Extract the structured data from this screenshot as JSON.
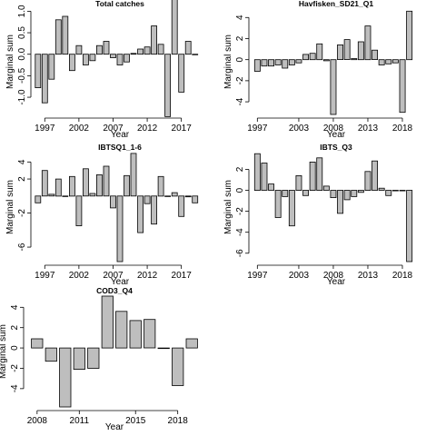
{
  "chart_data": [
    {
      "type": "bar",
      "title": "Total catches",
      "xlabel": "Year",
      "ylabel": "Marginal sum",
      "ylim": [
        -1.4,
        1.05
      ],
      "yticks": [
        -1.0,
        -0.5,
        0.0,
        0.5,
        1.0
      ],
      "ytick_labels": [
        "-1.0",
        "-0.5",
        "0.0",
        "0.5",
        "1.0"
      ],
      "xlim": [
        1995.5,
        2020.5
      ],
      "xticks": [
        1997,
        2002,
        2007,
        2012,
        2017
      ],
      "xtick_labels": [
        "1997",
        "2002",
        "2007",
        "2012",
        "2017"
      ],
      "bar_width": 0.8,
      "x": [
        1996,
        1997,
        1998,
        1999,
        2000,
        2001,
        2002,
        2003,
        2004,
        2005,
        2006,
        2007,
        2008,
        2009,
        2010,
        2011,
        2012,
        2013,
        2014,
        2015,
        2016,
        2017,
        2018,
        2019
      ],
      "values": [
        -0.78,
        -1.13,
        -0.58,
        0.8,
        0.88,
        -0.38,
        0.2,
        -0.25,
        -0.15,
        0.2,
        0.3,
        -0.08,
        -0.25,
        -0.18,
        0.02,
        0.12,
        0.17,
        0.66,
        0.23,
        -1.45,
        1.28,
        -0.88,
        0.3,
        0.0
      ]
    },
    {
      "type": "bar",
      "title": "Havfisken_SD21_Q1",
      "xlabel": "Year",
      "ylabel": "Marginal sum",
      "ylim": [
        -5.2,
        4.8
      ],
      "yticks": [
        -4,
        -2,
        0,
        2,
        4
      ],
      "ytick_labels": [
        "-4",
        "-2",
        "0",
        "2",
        "4"
      ],
      "xlim": [
        1996.3,
        2020.5
      ],
      "xticks": [
        1997,
        2003,
        2008,
        2013,
        2018
      ],
      "xtick_labels": [
        "1997",
        "2003",
        "2008",
        "2013",
        "2018"
      ],
      "bar_width": 0.8,
      "x": [
        1997,
        1998,
        1999,
        2000,
        2001,
        2002,
        2003,
        2004,
        2005,
        2006,
        2007,
        2008,
        2009,
        2010,
        2011,
        2012,
        2013,
        2014,
        2015,
        2016,
        2017,
        2018,
        2019
      ],
      "values": [
        -1.1,
        -0.6,
        -0.6,
        -0.5,
        -0.8,
        -0.5,
        -0.3,
        0.5,
        0.6,
        1.5,
        -0.1,
        -5.2,
        1.4,
        1.9,
        0.1,
        1.7,
        3.2,
        0.9,
        -0.5,
        -0.4,
        -0.3,
        -5.0,
        4.6
      ]
    },
    {
      "type": "bar",
      "title": "IBTSQ1_1-6",
      "xlabel": "Year",
      "ylabel": "Marginal sum",
      "ylim": [
        -7.7,
        5.1
      ],
      "yticks": [
        -6,
        -2,
        2,
        4
      ],
      "ytick_labels": [
        "-6",
        "-2",
        "2",
        "4"
      ],
      "xlim": [
        1995.5,
        2020.5
      ],
      "xticks": [
        1997,
        2002,
        2007,
        2012,
        2017
      ],
      "xtick_labels": [
        "1997",
        "2002",
        "2007",
        "2012",
        "2017"
      ],
      "bar_width": 0.8,
      "x": [
        1996,
        1997,
        1998,
        1999,
        2000,
        2001,
        2002,
        2003,
        2004,
        2005,
        2006,
        2007,
        2008,
        2009,
        2010,
        2011,
        2012,
        2013,
        2014,
        2015,
        2016,
        2017,
        2018,
        2019
      ],
      "values": [
        -0.8,
        3.0,
        0.2,
        2.0,
        0.0,
        2.3,
        -3.5,
        3.2,
        0.3,
        2.5,
        3.5,
        -1.4,
        -7.7,
        2.4,
        5.0,
        -4.3,
        -0.9,
        -3.3,
        2.3,
        0.0,
        0.4,
        -2.4,
        -0.1,
        -0.8
      ]
    },
    {
      "type": "bar",
      "title": "IBTS_Q3",
      "xlabel": "Year",
      "ylabel": "Marginal sum",
      "ylim": [
        -6.8,
        3.6
      ],
      "yticks": [
        -6,
        -4,
        -2,
        0,
        2
      ],
      "ytick_labels": [
        "-6",
        "-4",
        "-2",
        "0",
        "2"
      ],
      "xlim": [
        1996.3,
        2020.5
      ],
      "xticks": [
        1997,
        2003,
        2008,
        2013,
        2018
      ],
      "xtick_labels": [
        "1997",
        "2003",
        "2008",
        "2013",
        "2018"
      ],
      "bar_width": 0.8,
      "x": [
        1997,
        1998,
        1999,
        2000,
        2001,
        2002,
        2003,
        2004,
        2005,
        2006,
        2007,
        2008,
        2009,
        2010,
        2011,
        2012,
        2013,
        2014,
        2015,
        2016,
        2017,
        2018,
        2019
      ],
      "values": [
        3.5,
        2.6,
        0.6,
        -2.6,
        -0.6,
        -3.4,
        1.4,
        -0.5,
        2.7,
        3.1,
        0.4,
        -0.7,
        -2.2,
        -0.9,
        -0.6,
        -0.2,
        1.8,
        2.8,
        0.2,
        -0.5,
        0.0,
        0.0,
        -6.8
      ]
    },
    {
      "type": "bar",
      "title": "COD3_Q4",
      "xlabel": "Year",
      "ylabel": "Marginal sum",
      "ylim": [
        -5.8,
        5.1
      ],
      "yticks": [
        -4,
        -2,
        0,
        2,
        4
      ],
      "ytick_labels": [
        "-4",
        "-2",
        "0",
        "2",
        "4"
      ],
      "xlim": [
        2007.3,
        2019.7
      ],
      "xticks": [
        2008,
        2011,
        2015,
        2018
      ],
      "xtick_labels": [
        "2008",
        "2011",
        "2015",
        "2018"
      ],
      "bar_width": 0.8,
      "x": [
        2008,
        2009,
        2010,
        2011,
        2012,
        2013,
        2014,
        2015,
        2016,
        2017,
        2018,
        2019
      ],
      "values": [
        0.9,
        -1.3,
        -5.8,
        -2.1,
        -2.0,
        5.1,
        3.6,
        2.7,
        2.8,
        0.0,
        -3.7,
        0.9
      ]
    }
  ]
}
